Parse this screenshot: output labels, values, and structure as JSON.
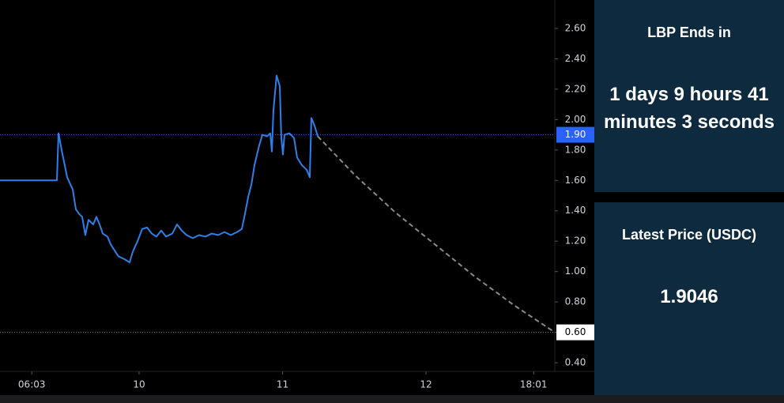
{
  "chart_data": {
    "type": "line",
    "xlim": [
      0.73,
      93.56
    ],
    "ylim": [
      0.343,
      2.787
    ],
    "xticks": [
      {
        "value": 6.05,
        "label": "06:03"
      },
      {
        "value": 24,
        "label": "10"
      },
      {
        "value": 48,
        "label": "11"
      },
      {
        "value": 72,
        "label": "12"
      },
      {
        "value": 90.02,
        "label": "18:01"
      }
    ],
    "yticks": [
      {
        "value": 0.4,
        "label": "0.40"
      },
      {
        "value": 0.6,
        "label": "0.60"
      },
      {
        "value": 0.8,
        "label": "0.80"
      },
      {
        "value": 1.0,
        "label": "1.00"
      },
      {
        "value": 1.2,
        "label": "1.20"
      },
      {
        "value": 1.4,
        "label": "1.40"
      },
      {
        "value": 1.6,
        "label": "1.60"
      },
      {
        "value": 1.8,
        "label": "1.80"
      },
      {
        "value": 2.0,
        "label": "2.00"
      },
      {
        "value": 2.2,
        "label": "2.20"
      },
      {
        "value": 2.4,
        "label": "2.40"
      },
      {
        "value": 2.6,
        "label": "2.60"
      }
    ],
    "price_lines": [
      {
        "value": 1.9,
        "label": "1.90",
        "color": "#2962ff"
      },
      {
        "value": 0.6,
        "label": "0.60",
        "color": "#ffffff"
      }
    ],
    "series": [
      {
        "color": "#2f7fe8",
        "dash": false,
        "x": [
          0.73,
          10.25,
          10.52,
          11.04,
          11.97,
          12.9,
          13.42,
          13.95,
          14.48,
          15.01,
          15.54,
          16.33,
          16.86,
          17.39,
          17.92,
          18.71,
          19.24,
          20.04,
          20.56,
          21.62,
          22.42,
          22.94,
          23.74,
          24.53,
          25.33,
          26.12,
          26.91,
          27.71,
          28.5,
          29.56,
          30.35,
          31.14,
          31.94,
          32.99,
          34.05,
          35.11,
          36.17,
          37.23,
          38.28,
          39.34,
          40.4,
          41.19,
          41.72,
          42.25,
          42.78,
          43.31,
          44.1,
          44.63,
          45.42,
          45.95,
          46.22,
          46.48,
          47.01,
          47.54,
          47.8,
          48.07,
          48.33,
          49.13,
          49.92,
          50.45,
          51.24,
          52.04,
          52.56,
          52.83,
          53.36,
          53.89
        ],
        "values": [
          1.6,
          1.6,
          1.91,
          1.8,
          1.62,
          1.54,
          1.41,
          1.38,
          1.36,
          1.24,
          1.34,
          1.31,
          1.36,
          1.31,
          1.25,
          1.23,
          1.18,
          1.13,
          1.1,
          1.08,
          1.06,
          1.13,
          1.2,
          1.28,
          1.29,
          1.25,
          1.23,
          1.27,
          1.23,
          1.25,
          1.31,
          1.27,
          1.24,
          1.22,
          1.24,
          1.23,
          1.25,
          1.24,
          1.26,
          1.24,
          1.26,
          1.28,
          1.38,
          1.49,
          1.57,
          1.7,
          1.83,
          1.9,
          1.89,
          1.91,
          1.79,
          2.06,
          2.29,
          2.22,
          1.88,
          1.77,
          1.9,
          1.91,
          1.88,
          1.75,
          1.7,
          1.67,
          1.62,
          2.01,
          1.96,
          1.89
        ]
      },
      {
        "color": "#8a8a8a",
        "dash": true,
        "x": [
          53.89,
          60.23,
          66.85,
          73.46,
          80.07,
          86.68,
          93.56
        ],
        "values": [
          1.89,
          1.63,
          1.39,
          1.18,
          0.97,
          0.78,
          0.6
        ]
      }
    ]
  },
  "panel": {
    "countdown_title": "LBP Ends in",
    "countdown": "1 days 9 hours 41 minutes 3 seconds",
    "price_title": "Latest Price (USDC)",
    "price": "1.9046"
  }
}
